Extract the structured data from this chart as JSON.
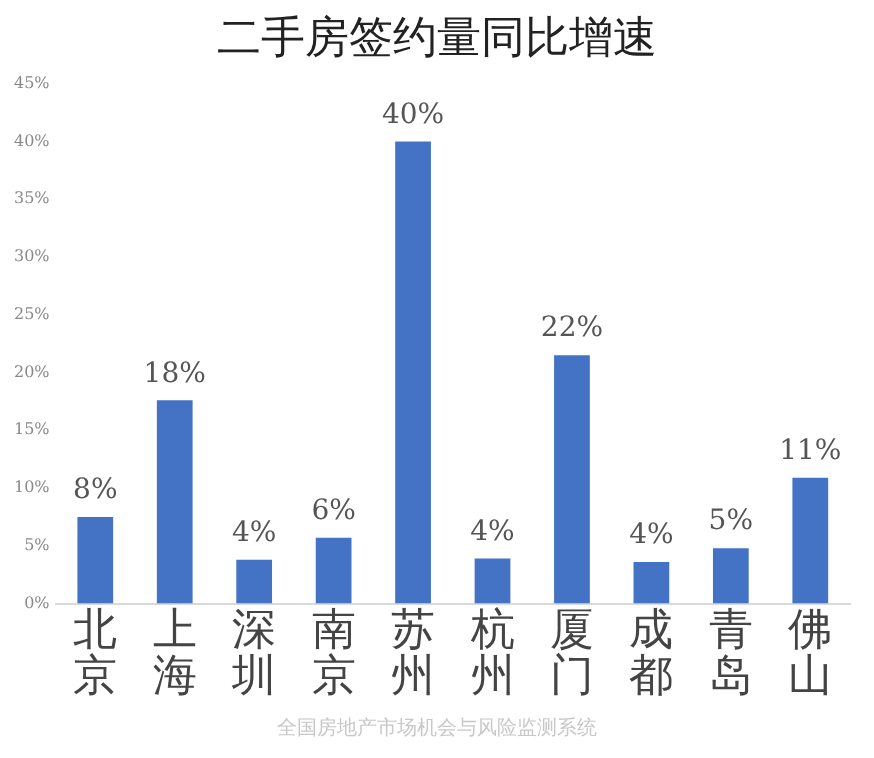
{
  "chart_data": {
    "type": "bar",
    "title": "二手房签约量同比增速",
    "categories": [
      "北京",
      "上海",
      "深圳",
      "南京",
      "苏州",
      "杭州",
      "厦门",
      "成都",
      "青岛",
      "佛山"
    ],
    "values": [
      7.5,
      17.6,
      3.8,
      5.7,
      40,
      3.9,
      21.5,
      3.6,
      4.8,
      10.9
    ],
    "value_labels": [
      "8%",
      "18%",
      "4%",
      "6%",
      "40%",
      "4%",
      "22%",
      "4%",
      "5%",
      "11%"
    ],
    "color": "#4472c4",
    "ylim": [
      0,
      45
    ],
    "yticks": [
      {
        "value": 0,
        "label": "0%"
      },
      {
        "value": 5,
        "label": "5%"
      },
      {
        "value": 10,
        "label": "10%"
      },
      {
        "value": 15,
        "label": "15%"
      },
      {
        "value": 20,
        "label": "20%"
      },
      {
        "value": 25,
        "label": "25%"
      },
      {
        "value": 30,
        "label": "30%"
      },
      {
        "value": 35,
        "label": "35%"
      },
      {
        "value": 40,
        "label": "40%"
      },
      {
        "value": 45,
        "label": "45%"
      }
    ],
    "grid": false,
    "legend": false,
    "annotations": [
      "全国房地产市场机会与风险监测系统"
    ]
  }
}
